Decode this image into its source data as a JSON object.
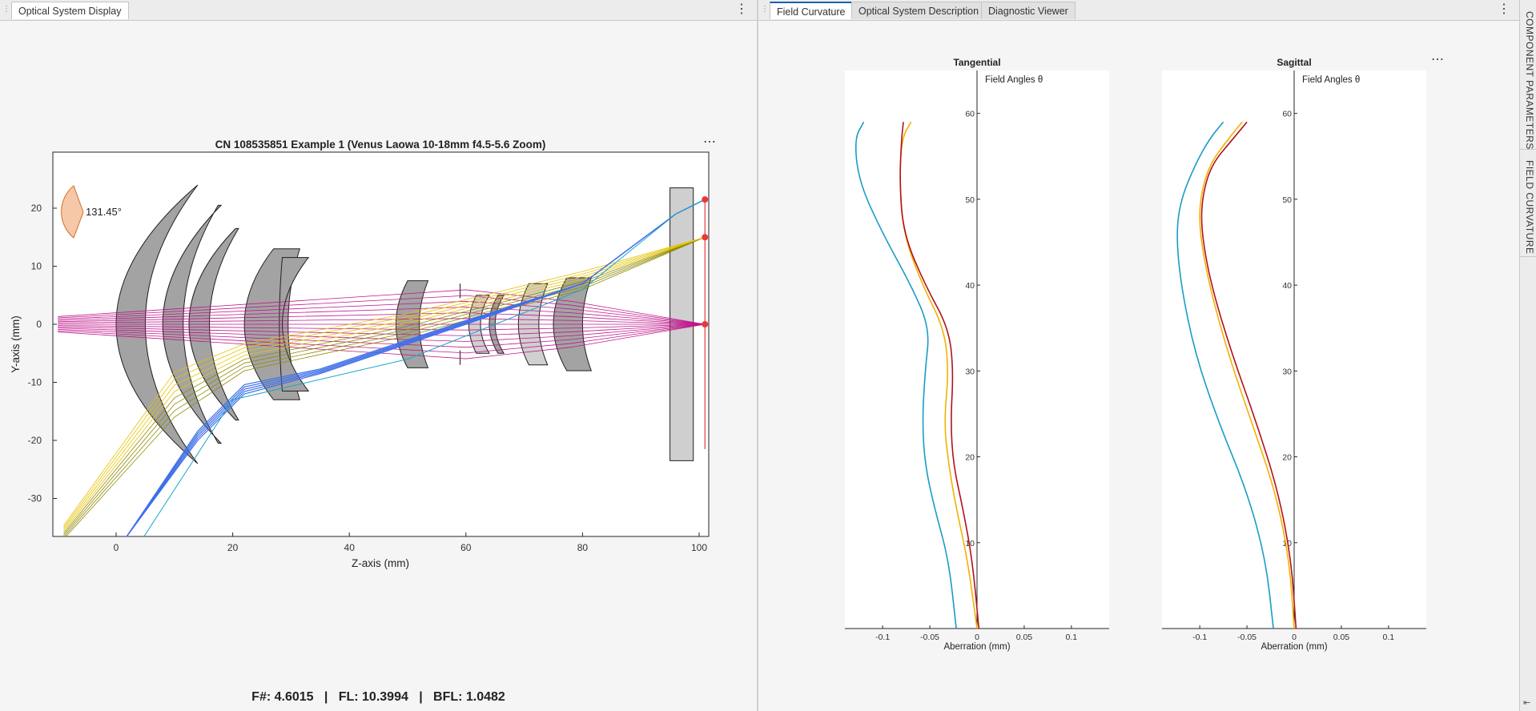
{
  "left": {
    "tab_label": "Optical System Display",
    "menu_icon": "kebab-icon",
    "plot": {
      "title": "CN 108535851 Example 1 (Venus Laowa 10-18mm f4.5-5.6 Zoom)",
      "xlabel": "Z-axis (mm)",
      "ylabel": "Y-axis (mm)",
      "xticks": [
        "0",
        "20",
        "40",
        "60",
        "80",
        "100"
      ],
      "yticks": [
        "20",
        "10",
        "0",
        "-10",
        "-20",
        "-30"
      ],
      "field_angle_label": "131.45°",
      "menu_icon": "kebab-icon"
    },
    "status": "F#: 4.6015   |   FL: 10.3994   |   BFL: 1.0482"
  },
  "right": {
    "tabs": [
      {
        "label": "Field Curvature",
        "active": true,
        "close_icon": "close-icon"
      },
      {
        "label": "Optical System Description",
        "active": false
      },
      {
        "label": "Diagnostic Viewer",
        "active": false
      }
    ],
    "menu_icon": "kebab-icon",
    "sidebar": {
      "items": [
        "COMPONENT PARAMETERS",
        "FIELD CURVATURE"
      ],
      "collapse_icon": "collapse-icon"
    },
    "field_curvature_plots": [
      {
        "title": "Tangential",
        "yaxis_label": "Field Angles θ",
        "xlabel": "Aberration (mm)"
      },
      {
        "title": "Sagittal",
        "yaxis_label": "Field Angles θ",
        "xlabel": "Aberration (mm)"
      }
    ],
    "xticks": [
      "-0.1",
      "-0.05",
      "0",
      "0.05",
      "0.1"
    ],
    "yticks": [
      "60",
      "50",
      "40",
      "30",
      "20",
      "10"
    ]
  },
  "colors": {
    "ray_magenta": "#c0168c",
    "ray_yellow": "#e7c200",
    "ray_olive": "#8e8a00",
    "ray_blue": "#3f6fe8",
    "ray_cyan": "#19a6c8",
    "curve_cyan": "#1a9cc8",
    "curve_orange": "#f2b200",
    "curve_red": "#b3121a",
    "lens_gray": "#a3a3a3"
  },
  "chart_data": [
    {
      "type": "line",
      "title": "Tangential",
      "xlabel": "Aberration (mm)",
      "ylabel": "Field Angles θ",
      "xlim": [
        -0.14,
        0.14
      ],
      "ylim": [
        0,
        65
      ],
      "series": [
        {
          "color": "#1a9cc8",
          "x": [
            -0.022,
            -0.03,
            -0.045,
            -0.055,
            -0.058,
            -0.055,
            -0.05,
            -0.07,
            -0.1,
            -0.125,
            -0.13,
            -0.12
          ],
          "y": [
            0,
            8,
            14,
            19,
            24,
            30,
            35,
            40,
            46,
            52,
            57,
            59
          ]
        },
        {
          "color": "#f2b200",
          "x": [
            0,
            -0.01,
            -0.022,
            -0.03,
            -0.035,
            -0.03,
            -0.035,
            -0.058,
            -0.078,
            -0.082,
            -0.08,
            -0.07
          ],
          "y": [
            0,
            8,
            14,
            19,
            24,
            30,
            35,
            40,
            46,
            52,
            57,
            59
          ]
        },
        {
          "color": "#b3121a",
          "x": [
            0.002,
            -0.005,
            -0.015,
            -0.025,
            -0.028,
            -0.025,
            -0.03,
            -0.055,
            -0.078,
            -0.082,
            -0.08,
            -0.078
          ],
          "y": [
            0,
            8,
            14,
            19,
            24,
            30,
            35,
            40,
            46,
            52,
            57,
            59
          ]
        }
      ]
    },
    {
      "type": "line",
      "title": "Sagittal",
      "xlabel": "Aberration (mm)",
      "ylabel": "Field Angles θ",
      "xlim": [
        -0.14,
        0.14
      ],
      "ylim": [
        0,
        65
      ],
      "series": [
        {
          "color": "#1a9cc8",
          "x": [
            -0.022,
            -0.03,
            -0.05,
            -0.08,
            -0.105,
            -0.12,
            -0.125,
            -0.12,
            -0.105,
            -0.09,
            -0.075
          ],
          "y": [
            0,
            8,
            16,
            24,
            32,
            40,
            46,
            50,
            54,
            57,
            59
          ]
        },
        {
          "color": "#f2b200",
          "x": [
            0,
            -0.005,
            -0.02,
            -0.045,
            -0.07,
            -0.09,
            -0.1,
            -0.1,
            -0.09,
            -0.07,
            -0.055
          ],
          "y": [
            0,
            8,
            16,
            24,
            32,
            40,
            46,
            50,
            54,
            57,
            59
          ]
        },
        {
          "color": "#b3121a",
          "x": [
            0.002,
            -0.003,
            -0.017,
            -0.04,
            -0.066,
            -0.088,
            -0.098,
            -0.098,
            -0.088,
            -0.065,
            -0.05
          ],
          "y": [
            0,
            8,
            16,
            24,
            32,
            40,
            46,
            50,
            54,
            57,
            59
          ]
        }
      ]
    }
  ]
}
